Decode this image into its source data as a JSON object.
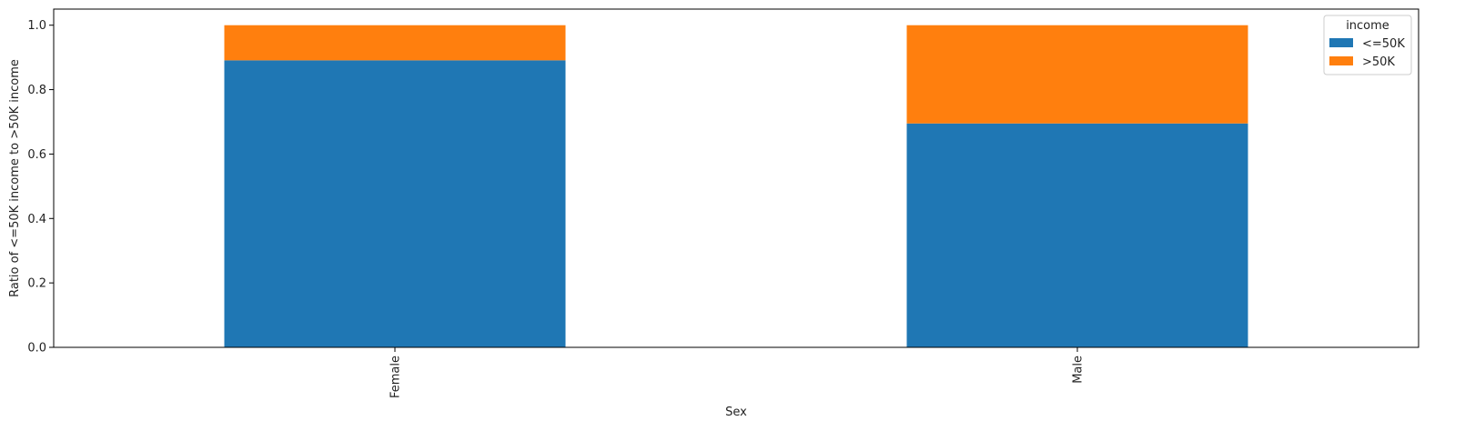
{
  "chart_data": {
    "type": "bar",
    "stacked": true,
    "categories": [
      "Female",
      "Male"
    ],
    "series": [
      {
        "name": "<=50K",
        "values": [
          0.891,
          0.695
        ],
        "color": "#1f77b4"
      },
      {
        "name": ">50K",
        "values": [
          0.109,
          0.305
        ],
        "color": "#ff7f0e"
      }
    ],
    "xlabel": "Sex",
    "ylabel": "Ratio of <=50K income to >50K income",
    "ylim": [
      0,
      1.05
    ],
    "yticks": [
      0.0,
      0.2,
      0.4,
      0.6,
      0.8,
      1.0
    ],
    "ytick_labels": [
      "0.0",
      "0.2",
      "0.4",
      "0.6",
      "0.8",
      "1.0"
    ],
    "xtick_rotation": "vertical",
    "legend": {
      "title": "income",
      "placement": "top-right"
    },
    "grid": false
  }
}
